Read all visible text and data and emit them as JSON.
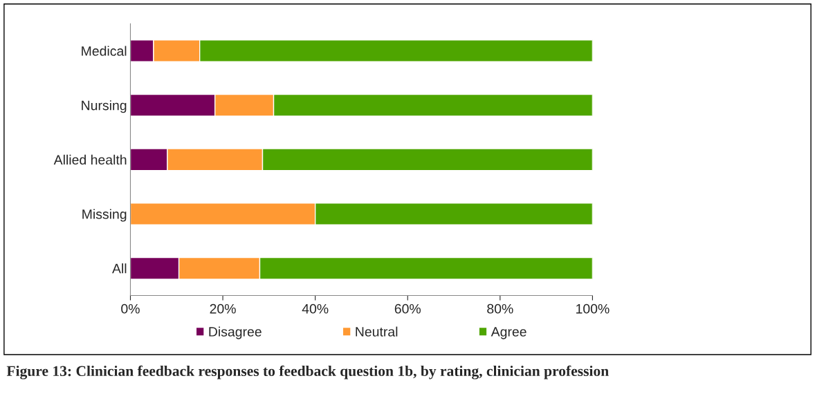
{
  "chart_data": {
    "type": "bar",
    "orientation": "horizontal",
    "stacked": true,
    "categories": [
      "Medical",
      "Nursing",
      "Allied health",
      "Missing",
      "All"
    ],
    "series": [
      {
        "name": "Disagree",
        "color": "#77005a",
        "values": [
          5,
          18.3,
          8,
          0,
          10.5
        ]
      },
      {
        "name": "Neutral",
        "color": "#ff9933",
        "values": [
          10,
          12.7,
          20.6,
          40,
          17.5
        ]
      },
      {
        "name": "Agree",
        "color": "#4ea500",
        "values": [
          85,
          69,
          71.4,
          60,
          72
        ]
      }
    ],
    "xlim": [
      0,
      100
    ],
    "xticks": [
      {
        "value": 0,
        "label": "0%"
      },
      {
        "value": 20,
        "label": "20%"
      },
      {
        "value": 40,
        "label": "40%"
      },
      {
        "value": 60,
        "label": "60%"
      },
      {
        "value": 80,
        "label": "80%"
      },
      {
        "value": 100,
        "label": "100%"
      }
    ],
    "grid": false,
    "legend": "bottom",
    "annotations": [
      "Figure 13: Clinician feedback responses to feedback question 1b, by rating, clinician profession"
    ]
  }
}
